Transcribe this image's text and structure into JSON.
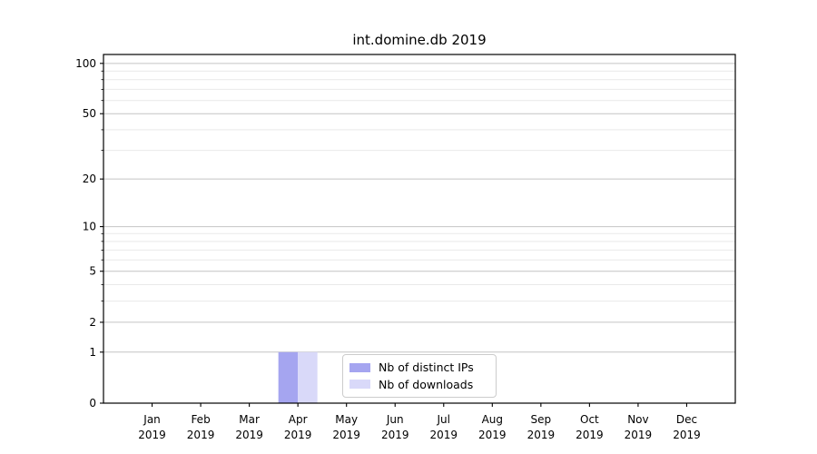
{
  "chart_data": {
    "type": "bar",
    "title": "int.domine.db 2019",
    "categories": [
      "Jan",
      "Feb",
      "Mar",
      "Apr",
      "May",
      "Jun",
      "Jul",
      "Aug",
      "Sep",
      "Oct",
      "Nov",
      "Dec"
    ],
    "category_year": "2019",
    "series": [
      {
        "name": "Nb of distinct IPs",
        "color": "#a5a5f0",
        "values": [
          0,
          0,
          0,
          1,
          0,
          0,
          0,
          0,
          0,
          0,
          0,
          0
        ]
      },
      {
        "name": "Nb of downloads",
        "color": "#d9d9f9",
        "values": [
          0,
          0,
          0,
          1,
          0,
          0,
          0,
          0,
          0,
          0,
          0,
          0
        ]
      }
    ],
    "xlabel": "",
    "ylabel": "",
    "yscale": "log1p",
    "ylim": [
      0,
      113
    ],
    "y_major_ticks": [
      0,
      1,
      2,
      5,
      10,
      20,
      50,
      100
    ],
    "y_minor_ticks": [
      3,
      4,
      6,
      7,
      8,
      9,
      30,
      40,
      60,
      70,
      80,
      90
    ],
    "grid": "on",
    "legend_position": "lower-center"
  },
  "colors": {
    "background": "#ffffff",
    "spine": "#000000",
    "tick_label": "#000000",
    "grid_major": "#c4c4c4",
    "grid_minor": "#e9e9e9",
    "legend_border": "#cccccc"
  }
}
